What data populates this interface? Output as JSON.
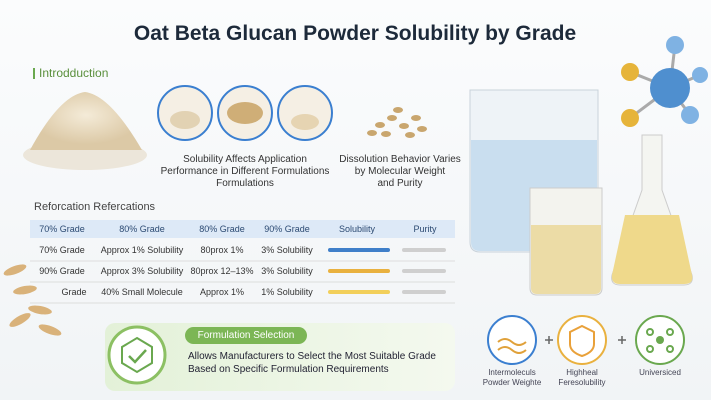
{
  "header": {
    "title": "Oat Beta Glucan Powder Solubility by Grade"
  },
  "intro": {
    "label": "Introdduction",
    "caption1": [
      "Solubility Affects Application",
      "Performance in Different Formulations",
      "Formulations"
    ],
    "caption2": [
      "Dissolution Behavior Varies",
      "by Molecular Weight",
      "and Purity"
    ]
  },
  "table": {
    "title": "Reforcation Refercations",
    "headers": [
      "70% Grade",
      "80% Grade",
      "80% Grade",
      "90% Grade",
      "Solubility",
      "Purity"
    ],
    "rows": [
      [
        "70% Grade",
        "Approx 1% Solubility",
        "80prox 1%",
        "3% Solubility"
      ],
      [
        "90% Grade",
        "Approx 3% Solubility",
        "80prox 12–13%",
        "3% Solubility"
      ],
      [
        "Grade",
        "40% Small Molecule",
        "Approx 1%",
        "1% Solubility"
      ]
    ]
  },
  "selection": {
    "label": "Formulation Selection",
    "text": [
      "Allows Manufacturers to Select the Most Suitable Grade",
      "Based on Specific Formulation Requirements"
    ]
  },
  "features": [
    {
      "lines": [
        "Intermoleculs",
        "Powder Weighte"
      ]
    },
    {
      "lines": [
        "Highheal",
        "Feresolubility"
      ]
    },
    {
      "lines": [
        "Universiced"
      ]
    }
  ]
}
